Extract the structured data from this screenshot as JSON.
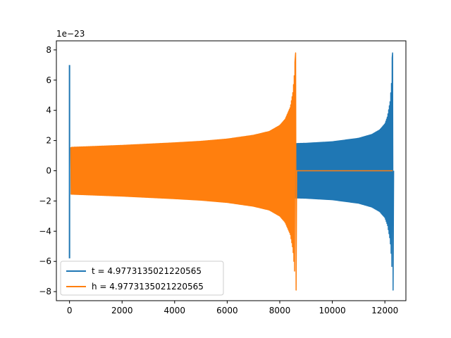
{
  "chart_data": {
    "type": "line",
    "title": "",
    "xlabel": "",
    "ylabel": "",
    "y_offset_label": "1e−23",
    "xlim": [
      -500,
      12800
    ],
    "ylim": [
      -8.6,
      8.6
    ],
    "x_ticks": [
      0,
      2000,
      4000,
      6000,
      8000,
      10000,
      12000
    ],
    "x_tick_labels": [
      "0",
      "2000",
      "4000",
      "6000",
      "8000",
      "10000",
      "12000"
    ],
    "y_ticks": [
      8,
      6,
      4,
      2,
      0,
      -2,
      -4,
      -6,
      -8
    ],
    "y_tick_labels": [
      "8",
      "6",
      "4",
      "2",
      "0",
      "−2",
      "−4",
      "−6",
      "−8"
    ],
    "grid": false,
    "legend_position": "lower left",
    "series": [
      {
        "name": "t = 4.9773135021220565",
        "color": "#1f77b4",
        "description": "oscillating waveform: spike at x≈0 reaching +7 and −5.8, then chirp with growing envelope until merger near x≈12280",
        "spike_x": 0,
        "spike_max": 7.0,
        "spike_min": -5.8,
        "envelope_x": [
          50,
          2000,
          4000,
          6000,
          7000,
          8000,
          8600,
          9000,
          10000,
          11000,
          11500,
          11800,
          12000,
          12100,
          12200,
          12260,
          12280,
          12300
        ],
        "envelope_amp": [
          1.55,
          1.6,
          1.65,
          1.71,
          1.75,
          1.78,
          1.8,
          1.82,
          1.92,
          2.15,
          2.4,
          2.7,
          3.1,
          3.6,
          4.6,
          6.0,
          7.7,
          0.0
        ],
        "peak_max": 7.8,
        "peak_min": -7.9
      },
      {
        "name": "h = 4.9773135021220565",
        "color": "#ff7f0e",
        "description": "oscillating waveform: chirp with growing envelope until merger near x≈8600, then flat at 0 until x≈12300",
        "envelope_x": [
          50,
          2000,
          4000,
          5000,
          6000,
          7000,
          7600,
          8000,
          8200,
          8400,
          8500,
          8560,
          8590,
          8610
        ],
        "envelope_amp": [
          1.55,
          1.68,
          1.85,
          1.95,
          2.1,
          2.35,
          2.6,
          3.0,
          3.4,
          4.2,
          5.2,
          6.5,
          7.7,
          0.0
        ],
        "peak_max": 7.8,
        "peak_min": -7.9,
        "flat_from_x": 8610,
        "flat_to_x": 12300,
        "flat_y": 0
      }
    ]
  }
}
